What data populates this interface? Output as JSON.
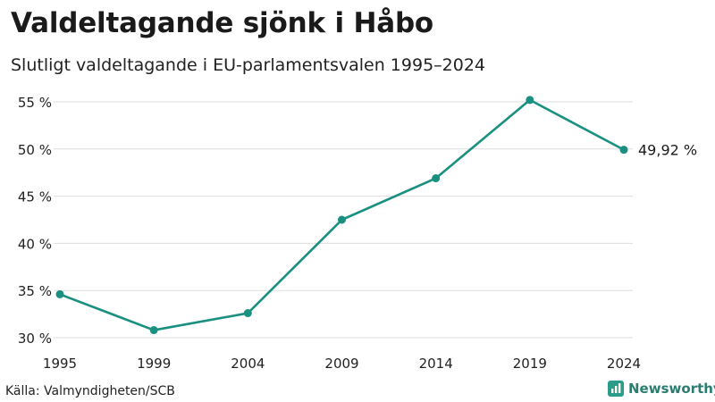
{
  "header": {
    "title": "Valdeltagande sjönk i Håbo",
    "subtitle": "Slutligt valdeltagande i EU-parlamentsvalen 1995–2024"
  },
  "footer": {
    "source": "Källa: Valmyndigheten/SCB",
    "brand": "Newsworthy",
    "brand_icon": "bar-chart-icon"
  },
  "colors": {
    "line": "#1a9080",
    "grid": "#dddddd",
    "text": "#1a1a1a"
  },
  "chart_data": {
    "type": "line",
    "title": "Valdeltagande sjönk i Håbo",
    "subtitle": "Slutligt valdeltagande i EU-parlamentsvalen 1995–2024",
    "xlabel": "",
    "ylabel": "",
    "x": [
      "1995",
      "1999",
      "2004",
      "2009",
      "2014",
      "2019",
      "2024"
    ],
    "series": [
      {
        "values": [
          34.6,
          30.8,
          32.6,
          42.5,
          46.9,
          55.2,
          49.92
        ]
      }
    ],
    "ylim": [
      30,
      55
    ],
    "yticks": [
      30,
      35,
      40,
      45,
      50,
      55
    ],
    "ytick_labels": [
      "30 %",
      "35 %",
      "40 %",
      "45 %",
      "50 %",
      "55 %"
    ],
    "end_label": "49,92 %",
    "grid": true,
    "legend": "none"
  }
}
